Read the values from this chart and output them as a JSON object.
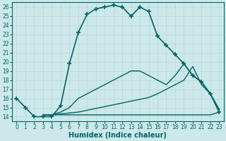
{
  "xlabel": "Humidex (Indice chaleur)",
  "xlim": [
    -0.5,
    23.5
  ],
  "ylim": [
    13.5,
    26.5
  ],
  "xticks": [
    0,
    1,
    2,
    3,
    4,
    5,
    6,
    7,
    8,
    9,
    10,
    11,
    12,
    13,
    14,
    15,
    16,
    17,
    18,
    19,
    20,
    21,
    22,
    23
  ],
  "yticks": [
    14,
    15,
    16,
    17,
    18,
    19,
    20,
    21,
    22,
    23,
    24,
    25,
    26
  ],
  "bg_color": "#cce8e8",
  "line_color": "#006666",
  "grid_color": "#b8d8d8",
  "lines": [
    {
      "x": [
        0,
        1,
        2,
        3,
        4,
        5,
        6,
        7,
        8,
        9,
        10,
        11,
        12,
        13,
        14,
        15,
        16,
        17,
        18,
        19,
        20,
        21,
        22,
        23
      ],
      "y": [
        16,
        15,
        14,
        14,
        14,
        15.2,
        19.8,
        23.2,
        25.2,
        25.8,
        26.0,
        26.2,
        26.0,
        25.0,
        26.0,
        25.5,
        22.8,
        21.8,
        20.8,
        19.8,
        18.5,
        17.8,
        16.5,
        14.5
      ],
      "marker": "+",
      "markersize": 5,
      "linewidth": 1.2,
      "markeredgewidth": 1.2
    },
    {
      "x": [
        3,
        4,
        5,
        6,
        7,
        8,
        9,
        10,
        11,
        12,
        13,
        14,
        15,
        16,
        17,
        18,
        19,
        20,
        21,
        22,
        23
      ],
      "y": [
        14.2,
        14.2,
        14.5,
        15.0,
        16.0,
        16.5,
        17.0,
        17.5,
        18.0,
        18.5,
        19.0,
        19.0,
        18.5,
        18.0,
        17.5,
        18.5,
        19.8,
        18.5,
        17.8,
        16.5,
        14.8
      ],
      "marker": null,
      "markersize": 0,
      "linewidth": 1.0,
      "markeredgewidth": 1.0
    },
    {
      "x": [
        3,
        4,
        5,
        6,
        7,
        8,
        9,
        10,
        11,
        12,
        13,
        14,
        15,
        16,
        17,
        18,
        19,
        20,
        21,
        22,
        23
      ],
      "y": [
        14.2,
        14.2,
        14.3,
        14.4,
        14.5,
        14.7,
        14.9,
        15.1,
        15.3,
        15.5,
        15.7,
        15.9,
        16.1,
        16.5,
        17.0,
        17.5,
        18.0,
        19.5,
        17.5,
        16.5,
        14.8
      ],
      "marker": null,
      "markersize": 0,
      "linewidth": 1.0,
      "markeredgewidth": 1.0
    },
    {
      "x": [
        3,
        4,
        5,
        6,
        7,
        8,
        9,
        10,
        11,
        12,
        13,
        14,
        15,
        16,
        17,
        18,
        19,
        20,
        21,
        22,
        23
      ],
      "y": [
        14.2,
        14.2,
        14.2,
        14.2,
        14.2,
        14.2,
        14.2,
        14.2,
        14.2,
        14.2,
        14.2,
        14.2,
        14.2,
        14.2,
        14.2,
        14.2,
        14.2,
        14.2,
        14.2,
        14.2,
        14.5
      ],
      "marker": null,
      "markersize": 0,
      "linewidth": 1.0,
      "markeredgewidth": 1.0
    }
  ]
}
